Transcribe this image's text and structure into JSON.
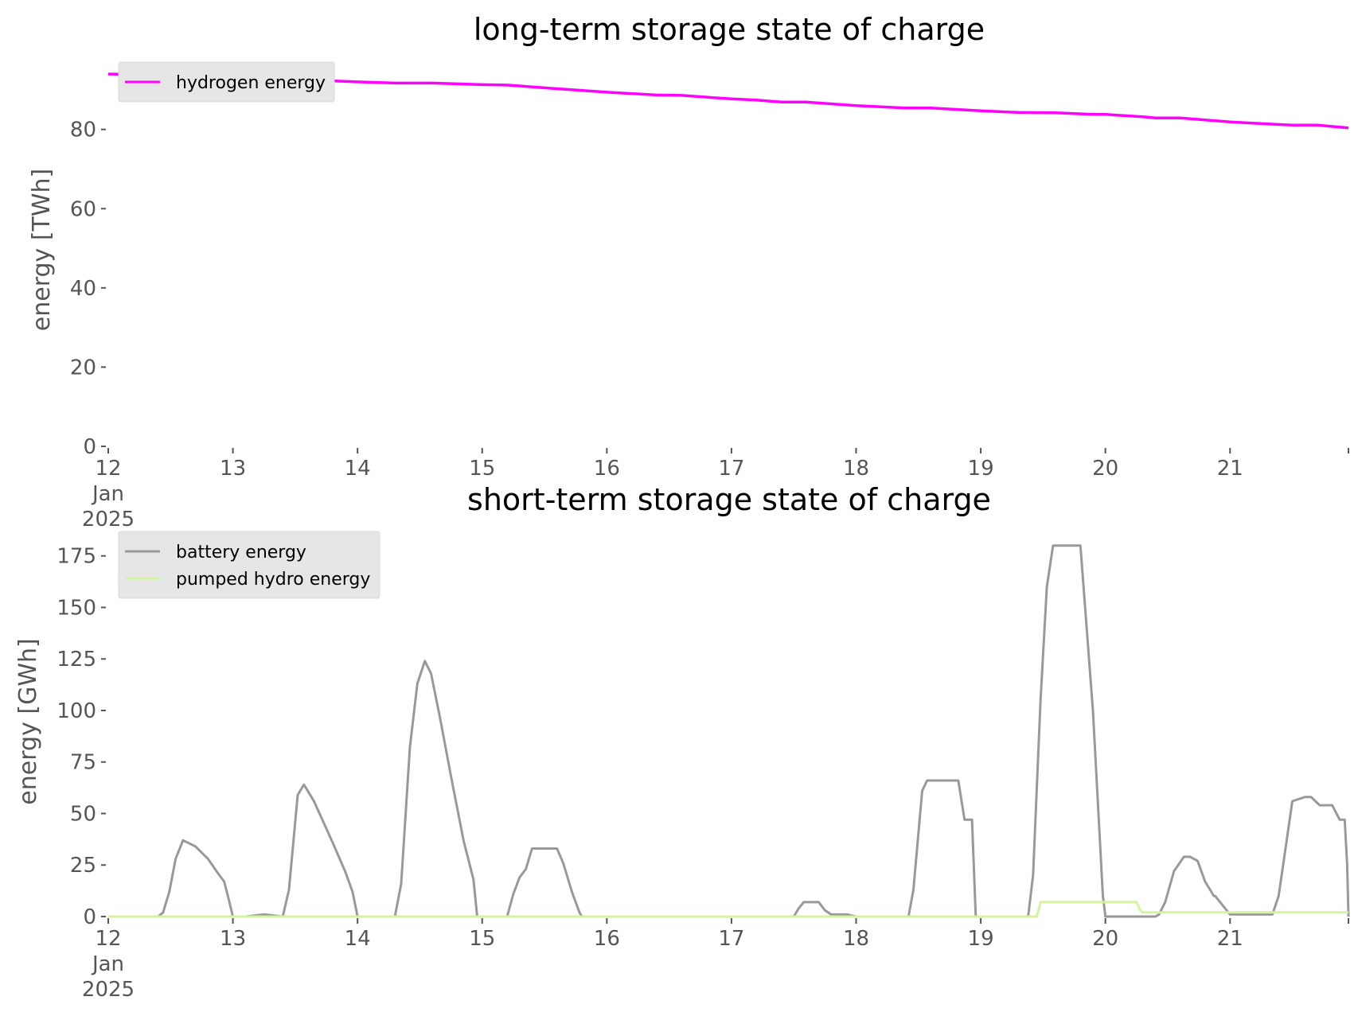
{
  "chart_data": [
    {
      "type": "line",
      "title": "long-term storage state of charge",
      "xlabel": "",
      "ylabel": "energy [TWh]",
      "x_ticks": [
        {
          "x": 12,
          "lines": [
            "12",
            "Jan",
            "2025"
          ]
        },
        {
          "x": 13,
          "lines": [
            "13"
          ]
        },
        {
          "x": 14,
          "lines": [
            "14"
          ]
        },
        {
          "x": 15,
          "lines": [
            "15"
          ]
        },
        {
          "x": 16,
          "lines": [
            "16"
          ]
        },
        {
          "x": 17,
          "lines": [
            "17"
          ]
        },
        {
          "x": 18,
          "lines": [
            "18"
          ]
        },
        {
          "x": 19,
          "lines": [
            "19"
          ]
        },
        {
          "x": 20,
          "lines": [
            "20"
          ]
        },
        {
          "x": 21,
          "lines": [
            "21"
          ]
        }
      ],
      "y_ticks": [
        0,
        20,
        40,
        60,
        80
      ],
      "xlim": [
        12,
        21.95
      ],
      "ylim": [
        0,
        95
      ],
      "grid": false,
      "legend_position": "top-left",
      "series": [
        {
          "name": "hydrogen energy",
          "color": "#ff00ff",
          "x": [
            12.0,
            12.5,
            13.0,
            13.5,
            14.0,
            14.3,
            14.6,
            15.0,
            15.2,
            15.5,
            16.0,
            16.4,
            16.6,
            17.0,
            17.2,
            17.4,
            17.6,
            18.0,
            18.4,
            18.6,
            19.0,
            19.3,
            19.6,
            19.9,
            20.0,
            20.3,
            20.4,
            20.6,
            21.0,
            21.3,
            21.5,
            21.7,
            21.95
          ],
          "y": [
            94.0,
            93.7,
            93.2,
            92.6,
            92.0,
            91.7,
            91.7,
            91.3,
            91.2,
            90.5,
            89.4,
            88.7,
            88.6,
            87.7,
            87.4,
            86.9,
            86.9,
            86.0,
            85.4,
            85.4,
            84.7,
            84.3,
            84.2,
            83.8,
            83.8,
            83.2,
            82.9,
            82.9,
            81.9,
            81.4,
            81.1,
            81.1,
            80.4
          ]
        }
      ]
    },
    {
      "type": "line",
      "title": "short-term storage state of charge",
      "xlabel": "",
      "ylabel": "energy [GWh]",
      "x_ticks": [
        {
          "x": 12,
          "lines": [
            "12",
            "Jan",
            "2025"
          ]
        },
        {
          "x": 13,
          "lines": [
            "13"
          ]
        },
        {
          "x": 14,
          "lines": [
            "14"
          ]
        },
        {
          "x": 15,
          "lines": [
            "15"
          ]
        },
        {
          "x": 16,
          "lines": [
            "16"
          ]
        },
        {
          "x": 17,
          "lines": [
            "17"
          ]
        },
        {
          "x": 18,
          "lines": [
            "18"
          ]
        },
        {
          "x": 19,
          "lines": [
            "19"
          ]
        },
        {
          "x": 20,
          "lines": [
            "20"
          ]
        },
        {
          "x": 21,
          "lines": [
            "21"
          ]
        }
      ],
      "y_ticks": [
        0,
        25,
        50,
        75,
        100,
        125,
        150,
        175
      ],
      "xlim": [
        12,
        21.95
      ],
      "ylim": [
        0,
        183
      ],
      "grid": false,
      "legend_position": "top-left",
      "series": [
        {
          "name": "battery energy",
          "color": "#999999",
          "x": [
            12.0,
            12.4,
            12.44,
            12.49,
            12.54,
            12.6,
            12.7,
            12.8,
            12.88,
            12.93,
            12.96,
            13.0,
            13.1,
            13.25,
            13.4,
            13.45,
            13.52,
            13.57,
            13.65,
            13.8,
            13.9,
            13.96,
            14.0,
            14.3,
            14.35,
            14.42,
            14.48,
            14.54,
            14.59,
            14.66,
            14.75,
            14.85,
            14.93,
            14.96,
            15.2,
            15.25,
            15.3,
            15.35,
            15.4,
            15.5,
            15.6,
            15.65,
            15.72,
            15.78,
            15.8,
            16.0,
            16.5,
            16.92,
            17.0,
            17.5,
            17.54,
            17.58,
            17.65,
            17.7,
            17.75,
            17.8,
            17.88,
            17.93,
            18.0,
            18.42,
            18.46,
            18.53,
            18.57,
            18.63,
            18.72,
            18.82,
            18.87,
            18.9,
            18.93,
            18.96,
            19.0,
            19.38,
            19.42,
            19.48,
            19.53,
            19.58,
            19.63,
            19.8,
            19.9,
            19.98,
            20.0,
            20.35,
            20.4,
            20.43,
            20.48,
            20.55,
            20.63,
            20.68,
            20.74,
            20.8,
            20.87,
            20.88,
            21.0,
            21.3,
            21.34,
            21.39,
            21.45,
            21.5,
            21.6,
            21.65,
            21.72,
            21.82,
            21.88,
            21.92,
            21.94,
            21.95
          ],
          "y": [
            0,
            0,
            2,
            12,
            28,
            37,
            34,
            28,
            21,
            17,
            10,
            0,
            0,
            1,
            0,
            13,
            59,
            64,
            56,
            36,
            22,
            12,
            0,
            0,
            16,
            82,
            113,
            124,
            118,
            97,
            68,
            37,
            18,
            0,
            0,
            11,
            19,
            23,
            33,
            33,
            33,
            26,
            12,
            2,
            0,
            0,
            0,
            0,
            0,
            0,
            4,
            7,
            7,
            7,
            3,
            1,
            1,
            1,
            0,
            0,
            13,
            61,
            66,
            66,
            66,
            66,
            47,
            47,
            47,
            0,
            0,
            0,
            20,
            105,
            160,
            180,
            180,
            180,
            100,
            10,
            0,
            0,
            0,
            1,
            7,
            22,
            29,
            29,
            27,
            17,
            10,
            10,
            1,
            1,
            1,
            10,
            35,
            56,
            58,
            58,
            54,
            54,
            47,
            47,
            25,
            0
          ]
        },
        {
          "name": "pumped hydro energy",
          "color": "#d4f3a0",
          "x": [
            12.0,
            19.45,
            19.48,
            19.5,
            20.25,
            20.28,
            20.3,
            20.4,
            21.95
          ],
          "y": [
            0,
            0,
            7,
            7,
            7,
            3,
            2,
            2,
            2
          ]
        }
      ]
    }
  ]
}
